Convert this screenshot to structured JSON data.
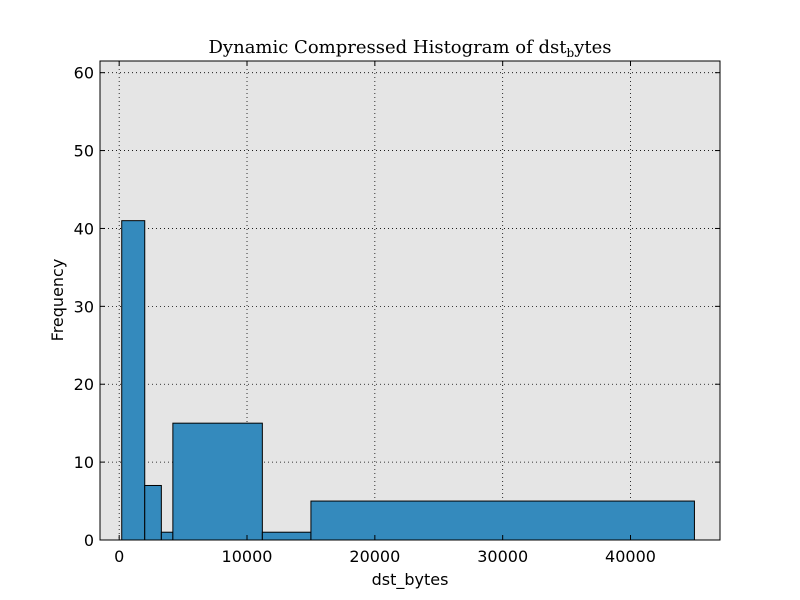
{
  "chart_data": {
    "type": "bar",
    "title": "Dynamic Compressed Histogram of dst",
    "title_subscript": "b",
    "title_suffix": "ytes",
    "xlabel": "dst_bytes",
    "ylabel": "Frequency",
    "xlim": [
      -1500,
      47000
    ],
    "ylim": [
      0,
      61.5
    ],
    "xticks": [
      0,
      10000,
      20000,
      30000,
      40000
    ],
    "xtick_labels": [
      "0",
      "10000",
      "20000",
      "30000",
      "40000"
    ],
    "yticks": [
      0,
      10,
      20,
      30,
      40,
      50,
      60
    ],
    "ytick_labels": [
      "0",
      "10",
      "20",
      "30",
      "40",
      "50",
      "60"
    ],
    "grid": true,
    "bins": [
      {
        "start": 200,
        "end": 2000,
        "count": 41
      },
      {
        "start": 2000,
        "end": 3300,
        "count": 7
      },
      {
        "start": 3300,
        "end": 4200,
        "count": 1
      },
      {
        "start": 4200,
        "end": 11200,
        "count": 15
      },
      {
        "start": 11200,
        "end": 15000,
        "count": 1
      },
      {
        "start": 15000,
        "end": 45000,
        "count": 5
      }
    ],
    "bar_color": "#348abd",
    "edge_color": "#000000",
    "plot_background": "#e5e5e5"
  }
}
